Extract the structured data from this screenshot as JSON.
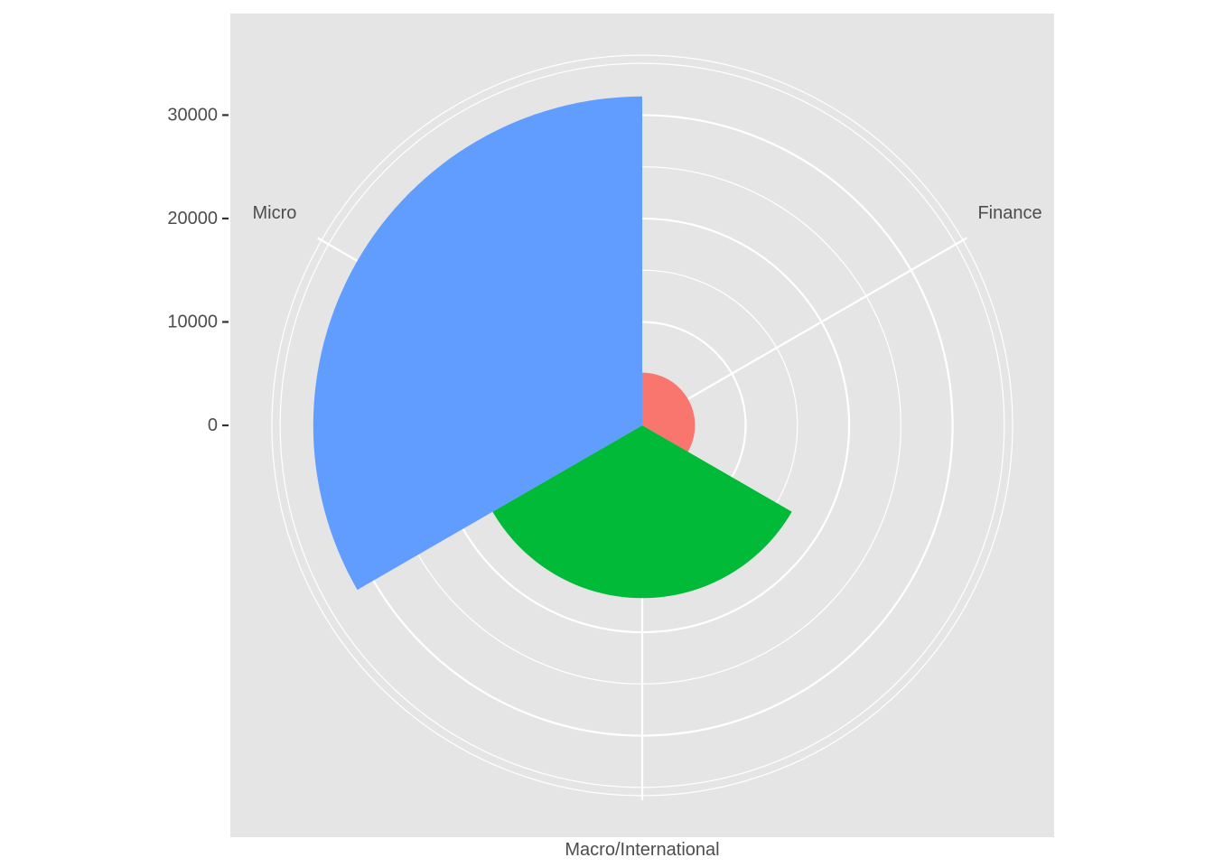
{
  "chart_data": {
    "type": "polar-bar",
    "categories": [
      "Finance",
      "Macro/International",
      "Micro"
    ],
    "values": [
      5100,
      16700,
      31800
    ],
    "colors": [
      "#F8766D",
      "#00BA38",
      "#619CFF"
    ],
    "y_ticks": [
      0,
      10000,
      20000,
      30000
    ],
    "y_tick_labels": [
      "0",
      "10000",
      "20000",
      "30000"
    ],
    "ylim": [
      0,
      35800
    ],
    "panel_background": "#E5E5E5",
    "grid_color": "#FFFFFF",
    "grid": true,
    "legend": "none"
  }
}
